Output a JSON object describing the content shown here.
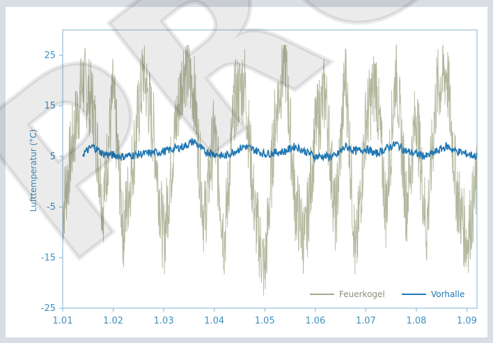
{
  "chart_data": {
    "type": "line",
    "title": "",
    "xlabel": "",
    "ylabel": "Lufttemperatur (°C)",
    "x_ticks": [
      "1.01",
      "1.02",
      "1.03",
      "1.04",
      "1.05",
      "1.06",
      "1.07",
      "1.08",
      "1.09"
    ],
    "y_ticks": [
      "25",
      "15",
      "5",
      "-5",
      "-15",
      "-25"
    ],
    "ylim": [
      -25,
      30
    ],
    "legend_position": "bottom-right",
    "series": [
      {
        "name": "Feuerkogel",
        "color": "#a3ab8c",
        "description_points": [
          [
            1.01,
            -6
          ],
          [
            1.012,
            8
          ],
          [
            1.014,
            20
          ],
          [
            1.016,
            15
          ],
          [
            1.018,
            -5
          ],
          [
            1.02,
            18
          ],
          [
            1.022,
            -10
          ],
          [
            1.024,
            5
          ],
          [
            1.026,
            22
          ],
          [
            1.028,
            10
          ],
          [
            1.03,
            -12
          ],
          [
            1.032,
            8
          ],
          [
            1.034,
            23
          ],
          [
            1.036,
            18
          ],
          [
            1.038,
            -8
          ],
          [
            1.04,
            10
          ],
          [
            1.042,
            -12
          ],
          [
            1.044,
            16
          ],
          [
            1.046,
            20
          ],
          [
            1.048,
            -6
          ],
          [
            1.05,
            -18
          ],
          [
            1.052,
            12
          ],
          [
            1.054,
            25
          ],
          [
            1.056,
            -4
          ],
          [
            1.058,
            -12
          ],
          [
            1.06,
            10
          ],
          [
            1.062,
            18
          ],
          [
            1.064,
            -8
          ],
          [
            1.066,
            22
          ],
          [
            1.068,
            -16
          ],
          [
            1.07,
            12
          ],
          [
            1.072,
            20
          ],
          [
            1.074,
            -6
          ],
          [
            1.076,
            23
          ],
          [
            1.078,
            -5
          ],
          [
            1.08,
            14
          ],
          [
            1.082,
            -10
          ],
          [
            1.084,
            18
          ],
          [
            1.086,
            22
          ],
          [
            1.088,
            -2
          ],
          [
            1.09,
            -12
          ],
          [
            1.092,
            0
          ]
        ]
      },
      {
        "name": "Vorhalle",
        "color": "#1f77b4",
        "description_points": [
          [
            1.014,
            5.5
          ],
          [
            1.016,
            7
          ],
          [
            1.018,
            5.5
          ],
          [
            1.022,
            5
          ],
          [
            1.026,
            5.5
          ],
          [
            1.03,
            6
          ],
          [
            1.034,
            7
          ],
          [
            1.036,
            8
          ],
          [
            1.038,
            6
          ],
          [
            1.042,
            5
          ],
          [
            1.046,
            7
          ],
          [
            1.05,
            5.5
          ],
          [
            1.054,
            6
          ],
          [
            1.056,
            7
          ],
          [
            1.06,
            5
          ],
          [
            1.064,
            5
          ],
          [
            1.066,
            7
          ],
          [
            1.068,
            6
          ],
          [
            1.07,
            6.5
          ],
          [
            1.072,
            5.5
          ],
          [
            1.076,
            7.5
          ],
          [
            1.078,
            6
          ],
          [
            1.082,
            5
          ],
          [
            1.086,
            7
          ],
          [
            1.088,
            6
          ],
          [
            1.092,
            5
          ]
        ]
      }
    ]
  },
  "watermark": {
    "text": "PRO"
  }
}
